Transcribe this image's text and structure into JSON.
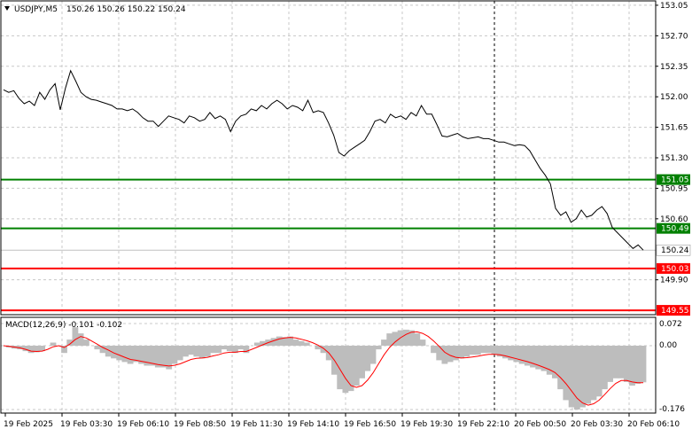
{
  "header": {
    "symbol": "USDJPY,M5",
    "ohlc": "150.26 150.26 150.22 150.24",
    "arrow_icon": "triangle-down-icon"
  },
  "macd": {
    "label": "MACD(12,26,9) -0.101 -0.102",
    "tick_labels": [
      "0.072",
      "0.00",
      "-0.176"
    ]
  },
  "colors": {
    "background": "#ffffff",
    "grid": "#c8c8c8",
    "price_line": "#000000",
    "green_level": "#006400",
    "red_level": "#ff0000",
    "current_price_line": "#c0c0c0",
    "histogram": "#bdbdbd",
    "signal": "#ff0000",
    "vline": "#000000"
  },
  "chart_data": {
    "type": "line",
    "title": "USDJPY,M5",
    "ylim": [
      149.5,
      153.1
    ],
    "y_tick_labels": [
      "153.05",
      "152.70",
      "152.35",
      "152.00",
      "151.65",
      "151.30",
      "150.95",
      "150.60",
      "149.90"
    ],
    "x_tick_labels": [
      "19 Feb 2025",
      "19 Feb 03:30",
      "19 Feb 06:10",
      "19 Feb 08:50",
      "19 Feb 11:30",
      "19 Feb 14:10",
      "19 Feb 16:50",
      "19 Feb 19:30",
      "19 Feb 22:10",
      "20 Feb 00:50",
      "20 Feb 03:30",
      "20 Feb 06:10"
    ],
    "levels": [
      {
        "label": "151.05",
        "value": 151.05,
        "color": "#008000"
      },
      {
        "label": "150.49",
        "value": 150.49,
        "color": "#008000"
      },
      {
        "label": "150.03",
        "value": 150.03,
        "color": "#ff0000"
      },
      {
        "label": "149.55",
        "value": 149.55,
        "color": "#ff0000"
      }
    ],
    "current_price": {
      "label": "150.24",
      "value": 150.24
    },
    "series": [
      {
        "values": [
          152.08,
          152.05,
          152.07,
          151.98,
          151.92,
          151.95,
          151.9,
          152.05,
          151.97,
          152.08,
          152.15,
          151.85,
          152.1,
          152.3,
          152.18,
          152.05,
          152.0,
          151.97,
          151.96,
          151.94,
          151.92,
          151.9,
          151.86,
          151.86,
          151.84,
          151.86,
          151.82,
          151.76,
          151.72,
          151.72,
          151.66,
          151.72,
          151.78,
          151.76,
          151.74,
          151.7,
          151.78,
          151.76,
          151.72,
          151.74,
          151.82,
          151.75,
          151.78,
          151.74,
          151.6,
          151.72,
          151.78,
          151.8,
          151.86,
          151.84,
          151.9,
          151.86,
          151.92,
          151.96,
          151.92,
          151.86,
          151.9,
          151.88,
          151.84,
          151.96,
          151.82,
          151.84,
          151.82,
          151.7,
          151.56,
          151.36,
          151.32,
          151.38,
          151.42,
          151.46,
          151.5,
          151.6,
          151.72,
          151.74,
          151.7,
          151.8,
          151.76,
          151.78,
          151.74,
          151.82,
          151.78,
          151.9,
          151.8,
          151.8,
          151.68,
          151.55,
          151.54,
          151.56,
          151.58,
          151.54,
          151.52,
          151.53,
          151.54,
          151.52,
          151.52,
          151.5,
          151.48,
          151.48,
          151.46,
          151.44,
          151.45,
          151.44,
          151.38,
          151.28,
          151.18,
          151.1,
          151.0,
          150.72,
          150.64,
          150.68,
          150.56,
          150.6,
          150.7,
          150.62,
          150.64,
          150.7,
          150.74,
          150.66,
          150.5,
          150.44,
          150.38,
          150.32,
          150.26,
          150.3,
          150.24
        ]
      }
    ],
    "macd": {
      "ylim": [
        -0.176,
        0.072
      ],
      "histogram": [
        0.0,
        -0.005,
        -0.008,
        -0.01,
        -0.015,
        -0.02,
        -0.018,
        -0.015,
        0.0,
        0.01,
        0.0,
        -0.02,
        0.02,
        0.06,
        0.04,
        0.02,
        0.0,
        -0.01,
        -0.02,
        -0.03,
        -0.035,
        -0.04,
        -0.045,
        -0.05,
        -0.045,
        -0.05,
        -0.055,
        -0.055,
        -0.06,
        -0.06,
        -0.065,
        -0.05,
        -0.04,
        -0.03,
        -0.025,
        -0.03,
        -0.035,
        -0.03,
        -0.02,
        -0.02,
        -0.01,
        -0.015,
        -0.02,
        -0.01,
        -0.02,
        0.0,
        0.01,
        0.015,
        0.02,
        0.025,
        0.03,
        0.028,
        0.03,
        0.02,
        0.015,
        0.01,
        0.0,
        -0.01,
        -0.02,
        -0.04,
        -0.08,
        -0.12,
        -0.13,
        -0.125,
        -0.11,
        -0.09,
        -0.07,
        -0.05,
        -0.01,
        0.02,
        0.04,
        0.045,
        0.05,
        0.052,
        0.05,
        0.04,
        0.02,
        0.0,
        -0.02,
        -0.04,
        -0.05,
        -0.045,
        -0.04,
        -0.035,
        -0.03,
        -0.025,
        -0.025,
        -0.02,
        -0.02,
        -0.025,
        -0.03,
        -0.035,
        -0.04,
        -0.045,
        -0.05,
        -0.055,
        -0.06,
        -0.065,
        -0.07,
        -0.08,
        -0.09,
        -0.12,
        -0.15,
        -0.17,
        -0.176,
        -0.17,
        -0.16,
        -0.15,
        -0.14,
        -0.12,
        -0.1,
        -0.09,
        -0.09,
        -0.1,
        -0.11,
        -0.105,
        -0.101
      ],
      "signal": [
        0.0,
        -0.002,
        -0.004,
        -0.006,
        -0.01,
        -0.015,
        -0.016,
        -0.015,
        -0.01,
        -0.003,
        0.0,
        -0.005,
        0.005,
        0.02,
        0.03,
        0.025,
        0.015,
        0.005,
        -0.005,
        -0.012,
        -0.02,
        -0.026,
        -0.032,
        -0.038,
        -0.04,
        -0.043,
        -0.046,
        -0.049,
        -0.052,
        -0.054,
        -0.056,
        -0.054,
        -0.05,
        -0.044,
        -0.038,
        -0.035,
        -0.034,
        -0.032,
        -0.028,
        -0.025,
        -0.02,
        -0.018,
        -0.018,
        -0.016,
        -0.016,
        -0.01,
        -0.004,
        0.003,
        0.01,
        0.016,
        0.022,
        0.025,
        0.027,
        0.025,
        0.021,
        0.016,
        0.01,
        0.002,
        -0.007,
        -0.02,
        -0.04,
        -0.065,
        -0.09,
        -0.11,
        -0.115,
        -0.11,
        -0.095,
        -0.075,
        -0.05,
        -0.025,
        -0.005,
        0.012,
        0.026,
        0.037,
        0.044,
        0.045,
        0.04,
        0.03,
        0.015,
        -0.002,
        -0.018,
        -0.027,
        -0.032,
        -0.034,
        -0.033,
        -0.031,
        -0.029,
        -0.026,
        -0.024,
        -0.024,
        -0.025,
        -0.028,
        -0.032,
        -0.036,
        -0.04,
        -0.044,
        -0.049,
        -0.054,
        -0.06,
        -0.066,
        -0.074,
        -0.088,
        -0.105,
        -0.125,
        -0.145,
        -0.158,
        -0.164,
        -0.16,
        -0.15,
        -0.135,
        -0.118,
        -0.104,
        -0.096,
        -0.096,
        -0.1,
        -0.102,
        -0.102
      ]
    }
  }
}
